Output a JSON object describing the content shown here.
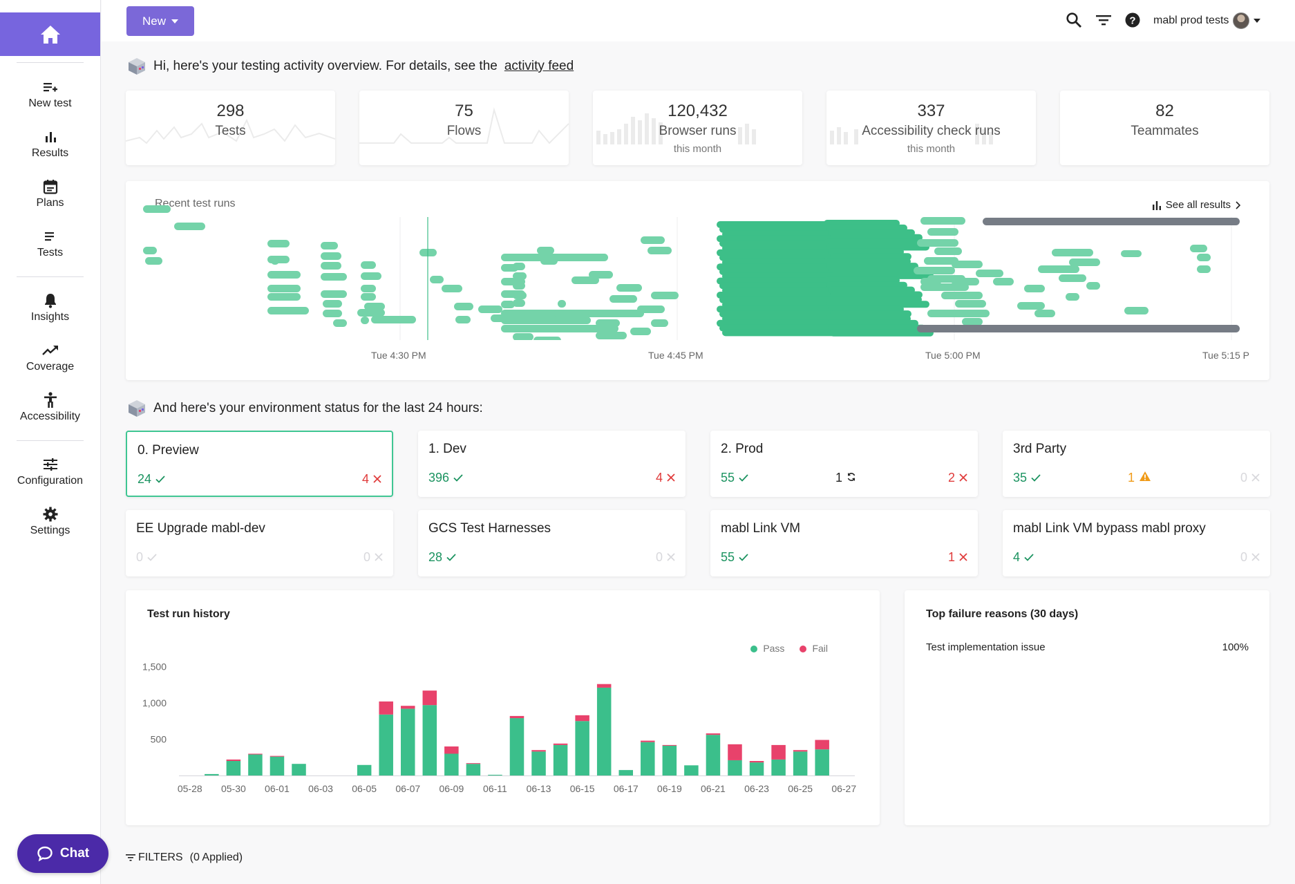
{
  "sidebar": {
    "items": [
      {
        "label": "New test",
        "icon": "new-test-icon"
      },
      {
        "label": "Results",
        "icon": "bar-chart-icon"
      },
      {
        "label": "Plans",
        "icon": "calendar-icon"
      },
      {
        "label": "Tests",
        "icon": "list-icon"
      },
      {
        "label": "Insights",
        "icon": "bell-icon"
      },
      {
        "label": "Coverage",
        "icon": "trending-up-icon"
      },
      {
        "label": "Accessibility",
        "icon": "accessibility-icon"
      },
      {
        "label": "Configuration",
        "icon": "sliders-icon"
      },
      {
        "label": "Settings",
        "icon": "gear-icon"
      }
    ],
    "chat_label": "Chat"
  },
  "topbar": {
    "new_label": "New",
    "account_name": "mabl prod tests"
  },
  "greeting": {
    "text": "Hi, here's your testing activity overview. For details, see the",
    "link": "activity feed"
  },
  "stats": [
    {
      "value": "298",
      "label": "Tests",
      "sub": ""
    },
    {
      "value": "75",
      "label": "Flows",
      "sub": ""
    },
    {
      "value": "120,432",
      "label": "Browser runs",
      "sub": "this month"
    },
    {
      "value": "337",
      "label": "Accessibility check runs",
      "sub": "this month"
    },
    {
      "value": "82",
      "label": "Teammates",
      "sub": ""
    }
  ],
  "recent_runs": {
    "title": "Recent test runs",
    "see_all": "See all results",
    "time_labels": [
      "Tue 4:30 PM",
      "Tue 4:45 PM",
      "Tue 5:00 PM",
      "Tue 5:15 P"
    ]
  },
  "environment": {
    "heading": "And here's your environment status for the last 24 hours:",
    "cards": [
      {
        "name": "0. Preview",
        "pass": "24",
        "mid": "",
        "fail": "4",
        "fail_dim": false,
        "pass_dim": false
      },
      {
        "name": "1. Dev",
        "pass": "396",
        "mid": "",
        "fail": "4",
        "fail_dim": false,
        "pass_dim": false
      },
      {
        "name": "2. Prod",
        "pass": "55",
        "mid": "1",
        "mid_type": "running",
        "fail": "2",
        "fail_dim": false,
        "pass_dim": false
      },
      {
        "name": "3rd Party",
        "pass": "35",
        "mid": "1",
        "mid_type": "warning",
        "fail": "0",
        "fail_dim": true,
        "pass_dim": false
      },
      {
        "name": "EE Upgrade mabl-dev",
        "pass": "0",
        "mid": "",
        "fail": "0",
        "fail_dim": true,
        "pass_dim": true
      },
      {
        "name": "GCS Test Harnesses",
        "pass": "28",
        "mid": "",
        "fail": "0",
        "fail_dim": true,
        "pass_dim": false
      },
      {
        "name": "mabl Link VM",
        "pass": "55",
        "mid": "",
        "fail": "1",
        "fail_dim": false,
        "pass_dim": false
      },
      {
        "name": "mabl Link VM bypass mabl proxy",
        "pass": "4",
        "mid": "",
        "fail": "0",
        "fail_dim": true,
        "pass_dim": false
      }
    ]
  },
  "history": {
    "title": "Test run history",
    "legend_pass": "Pass",
    "legend_fail": "Fail"
  },
  "failure": {
    "title": "Top failure reasons (30 days)",
    "reason": "Test implementation issue",
    "pct": "100%"
  },
  "filters": {
    "label": "FILTERS",
    "applied": "(0 Applied)"
  },
  "colors": {
    "accent": "#7765de",
    "pass": "#3bbf8b",
    "fail": "#e8426b",
    "gantt": "#5cc999",
    "gantt_dark": "#767c85"
  },
  "chart_data": {
    "type": "bar",
    "stacked": true,
    "categories": [
      "05-28",
      "05-29",
      "05-30",
      "05-31",
      "06-01",
      "06-02",
      "06-03",
      "06-04",
      "06-05",
      "06-06",
      "06-07",
      "06-08",
      "06-09",
      "06-10",
      "06-11",
      "06-12",
      "06-13",
      "06-14",
      "06-15",
      "06-16",
      "06-17",
      "06-18",
      "06-19",
      "06-20",
      "06-21",
      "06-22",
      "06-23",
      "06-24",
      "06-25",
      "06-26",
      "06-27"
    ],
    "tick_labels": [
      "05-28",
      "05-30",
      "06-01",
      "06-03",
      "06-05",
      "06-07",
      "06-09",
      "06-11",
      "06-13",
      "06-15",
      "06-17",
      "06-19",
      "06-21",
      "06-23",
      "06-25",
      "06-27"
    ],
    "series": [
      {
        "name": "Pass",
        "values": [
          0,
          20,
          200,
          290,
          260,
          160,
          0,
          0,
          145,
          840,
          920,
          970,
          300,
          160,
          10,
          790,
          330,
          420,
          750,
          1210,
          75,
          460,
          410,
          140,
          560,
          210,
          180,
          220,
          330,
          360,
          0
        ]
      },
      {
        "name": "Fail",
        "values": [
          0,
          0,
          20,
          10,
          10,
          0,
          0,
          0,
          0,
          180,
          40,
          200,
          100,
          10,
          0,
          30,
          20,
          20,
          80,
          50,
          0,
          20,
          10,
          0,
          20,
          220,
          20,
          200,
          20,
          130,
          0
        ]
      }
    ],
    "ylim": [
      0,
      1600
    ],
    "yticks": [
      "500",
      "1,000",
      "1,500"
    ]
  }
}
